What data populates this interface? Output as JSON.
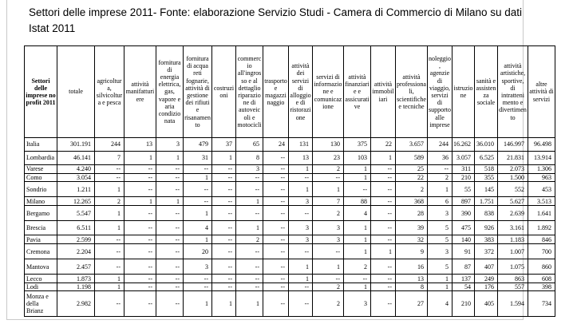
{
  "title": "Settori delle imprese 2011- Fonte: elaborazione Servizio Studi - Camera di Commercio di Milano su dati Istat 2011",
  "colors": {
    "text": "#000000",
    "table_border": "#000000",
    "page_margin_line": "#c9c9c9",
    "background": "#ffffff"
  },
  "table": {
    "corner_header": "Settori delle imprese no profit 2011",
    "null_symbol": "--",
    "columns": [
      "totale",
      "agricoltura, silvicoltura e pesca",
      "attività manifatturiere",
      "fornitura di energia elettrica, gas, vapore e aria condizionata",
      "fornitura di acqua reti fognarie, attività di gestione dei rifiuti e risanamento",
      "costruzioni",
      "commercio all'ingrosso e al dettaglio riparazione di autoveicoli e motocicli",
      "trasporto e magazzinaggio",
      "attività dei servizi di alloggio e di ristorazione",
      "servizi di informazione e comunicazione",
      "attività finanziarie e assicurative",
      "attività immobiliari",
      "attività professionali, scientifiche e tecniche",
      "noleggio, agenzie di viaggio, servizi di supporto alle imprese",
      "istruzione",
      "sanità e assistenza sociale",
      "attività artistiche, sportive, di intrattenimento e divertimento",
      "altre attività di servizi"
    ],
    "rows": [
      {
        "label": "Italia",
        "values": [
          "301.191",
          "244",
          "13",
          "3",
          "479",
          "37",
          "65",
          "24",
          "131",
          "130",
          "375",
          "22",
          "3.657",
          "244",
          "16.262",
          "36.010",
          "146.997",
          "96.498"
        ]
      },
      {
        "label": "Lombardia",
        "values": [
          "46.141",
          "7",
          "1",
          "1",
          "31",
          "1",
          "8",
          "--",
          "13",
          "23",
          "103",
          "1",
          "589",
          "36",
          "3.057",
          "6.525",
          "21.831",
          "13.914"
        ]
      },
      {
        "label": "Varese",
        "values": [
          "4.240",
          "--",
          "--",
          "--",
          "--",
          "--",
          "3",
          "--",
          "1",
          "2",
          "1",
          "--",
          "25",
          "--",
          "311",
          "518",
          "2.073",
          "1.306"
        ]
      },
      {
        "label": "Como",
        "values": [
          "3.054",
          "--",
          "--",
          "--",
          "1",
          "--",
          "--",
          "--",
          "--",
          "--",
          "1",
          "--",
          "22",
          "2",
          "210",
          "355",
          "1.500",
          "963"
        ]
      },
      {
        "label": "Sondrio",
        "values": [
          "1.211",
          "1",
          "--",
          "--",
          "--",
          "--",
          "--",
          "--",
          "1",
          "1",
          "--",
          "--",
          "2",
          "1",
          "55",
          "145",
          "552",
          "453"
        ]
      },
      {
        "label": "Milano",
        "values": [
          "12.265",
          "2",
          "1",
          "1",
          "--",
          "--",
          "1",
          "--",
          "3",
          "7",
          "88",
          "--",
          "368",
          "6",
          "897",
          "1.751",
          "5.627",
          "3.513"
        ]
      },
      {
        "label": "Bergamo",
        "values": [
          "5.547",
          "1",
          "--",
          "--",
          "1",
          "--",
          "--",
          "--",
          "--",
          "2",
          "4",
          "--",
          "28",
          "3",
          "390",
          "838",
          "2.639",
          "1.641"
        ]
      },
      {
        "label": "Brescia",
        "values": [
          "6.511",
          "1",
          "--",
          "--",
          "4",
          "--",
          "1",
          "--",
          "3",
          "3",
          "1",
          "--",
          "39",
          "5",
          "475",
          "926",
          "3.161",
          "1.892"
        ]
      },
      {
        "label": "Pavia",
        "values": [
          "2.599",
          "--",
          "--",
          "--",
          "1",
          "--",
          "2",
          "--",
          "3",
          "3",
          "1",
          "--",
          "32",
          "5",
          "140",
          "383",
          "1.183",
          "846"
        ]
      },
      {
        "label": "Cremona",
        "values": [
          "2.204",
          "--",
          "--",
          "--",
          "20",
          "--",
          "--",
          "--",
          "--",
          "--",
          "1",
          "1",
          "9",
          "3",
          "91",
          "372",
          "1.007",
          "700"
        ]
      },
      {
        "label": "Mantova",
        "values": [
          "2.457",
          "--",
          "--",
          "--",
          "3",
          "--",
          "--",
          "--",
          "1",
          "1",
          "2",
          "--",
          "16",
          "5",
          "87",
          "407",
          "1.075",
          "860"
        ]
      },
      {
        "label": "Lecco",
        "values": [
          "1.873",
          "1",
          "--",
          "--",
          "--",
          "--",
          "--",
          "--",
          "1",
          "--",
          "--",
          "--",
          "13",
          "1",
          "137",
          "249",
          "863",
          "608"
        ]
      },
      {
        "label": "Lodi",
        "values": [
          "1.198",
          "1",
          "--",
          "--",
          "--",
          "--",
          "--",
          "--",
          "--",
          "2",
          "1",
          "--",
          "8",
          "1",
          "54",
          "176",
          "557",
          "398"
        ]
      },
      {
        "label": "Monza e della Brianz",
        "values": [
          "2.982",
          "--",
          "--",
          "--",
          "1",
          "1",
          "1",
          "--",
          "--",
          "2",
          "3",
          "--",
          "27",
          "4",
          "210",
          "405",
          "1.594",
          "734"
        ]
      }
    ]
  }
}
